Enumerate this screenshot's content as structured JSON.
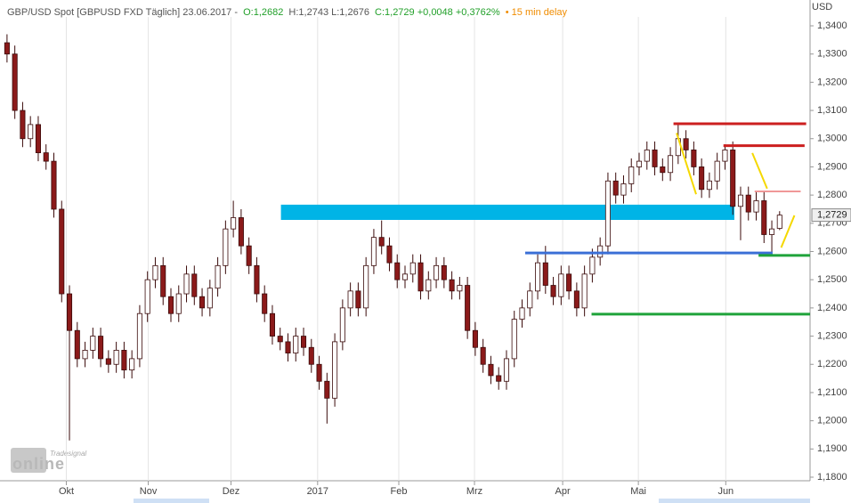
{
  "chart_data": {
    "type": "candlestick",
    "header": {
      "title": "GBP/USD Spot [GBPUSD FXD Täglich] 23.06.2017 -",
      "open": "O:1,2682",
      "high_low": "H:1,2743 L:1,2676",
      "close": "C:1,2729 +0,0048 +0,3762%",
      "delay": "• 15 min delay"
    },
    "y_unit": "USD",
    "watermark": {
      "brand": "Tradesignal",
      "logo": "online"
    },
    "up_color": "#ffffff",
    "down_color": "#8b1a1a",
    "outline_color": "#3a0a0a",
    "open": [
      1.334,
      1.33,
      1.31,
      1.3,
      1.305,
      1.295,
      1.292,
      1.275,
      1.245,
      1.232,
      1.222,
      1.225,
      1.23,
      1.222,
      1.22,
      1.225,
      1.218,
      1.222,
      1.238,
      1.25,
      1.255,
      1.244,
      1.238,
      1.245,
      1.252,
      1.244,
      1.24,
      1.247,
      1.255,
      1.268,
      1.272,
      1.262,
      1.255,
      1.245,
      1.238,
      1.23,
      1.228,
      1.224,
      1.23,
      1.226,
      1.22,
      1.214,
      1.208,
      1.228,
      1.24,
      1.246,
      1.24,
      1.255,
      1.265,
      1.262,
      1.256,
      1.25,
      1.252,
      1.256,
      1.246,
      1.25,
      1.255,
      1.25,
      1.246,
      1.248,
      1.232,
      1.226,
      1.22,
      1.216,
      1.214,
      1.222,
      1.236,
      1.24,
      1.246,
      1.256,
      1.248,
      1.244,
      1.252,
      1.246,
      1.24,
      1.252,
      1.258,
      1.262,
      1.285,
      1.28,
      1.284,
      1.29,
      1.292,
      1.296,
      1.29,
      1.288,
      1.294,
      1.3,
      1.296,
      1.29,
      1.282,
      1.285,
      1.292,
      1.296,
      1.276,
      1.28,
      1.274,
      1.278,
      1.266,
      1.2682
    ],
    "high": [
      1.337,
      1.333,
      1.313,
      1.308,
      1.308,
      1.298,
      1.295,
      1.278,
      1.248,
      1.235,
      1.228,
      1.233,
      1.233,
      1.225,
      1.228,
      1.228,
      1.225,
      1.241,
      1.253,
      1.258,
      1.258,
      1.247,
      1.248,
      1.255,
      1.255,
      1.247,
      1.25,
      1.258,
      1.271,
      1.278,
      1.275,
      1.265,
      1.258,
      1.248,
      1.241,
      1.233,
      1.231,
      1.233,
      1.233,
      1.229,
      1.223,
      1.217,
      1.231,
      1.243,
      1.249,
      1.249,
      1.258,
      1.268,
      1.271,
      1.265,
      1.259,
      1.255,
      1.259,
      1.259,
      1.253,
      1.258,
      1.258,
      1.253,
      1.251,
      1.251,
      1.235,
      1.229,
      1.223,
      1.219,
      1.225,
      1.239,
      1.243,
      1.249,
      1.259,
      1.262,
      1.251,
      1.255,
      1.255,
      1.249,
      1.255,
      1.261,
      1.265,
      1.288,
      1.288,
      1.287,
      1.293,
      1.295,
      1.299,
      1.299,
      1.293,
      1.297,
      1.305,
      1.303,
      1.299,
      1.293,
      1.288,
      1.295,
      1.298,
      1.299,
      1.283,
      1.283,
      1.281,
      1.281,
      1.271,
      1.2743
    ],
    "low": [
      1.327,
      1.307,
      1.297,
      1.297,
      1.292,
      1.289,
      1.272,
      1.242,
      1.193,
      1.219,
      1.219,
      1.222,
      1.219,
      1.217,
      1.217,
      1.215,
      1.215,
      1.219,
      1.235,
      1.247,
      1.241,
      1.235,
      1.235,
      1.242,
      1.241,
      1.237,
      1.237,
      1.244,
      1.252,
      1.265,
      1.259,
      1.252,
      1.242,
      1.235,
      1.227,
      1.225,
      1.221,
      1.221,
      1.223,
      1.217,
      1.211,
      1.199,
      1.205,
      1.225,
      1.237,
      1.237,
      1.237,
      1.252,
      1.259,
      1.253,
      1.247,
      1.247,
      1.249,
      1.243,
      1.243,
      1.247,
      1.247,
      1.243,
      1.243,
      1.229,
      1.223,
      1.217,
      1.213,
      1.211,
      1.211,
      1.219,
      1.233,
      1.237,
      1.243,
      1.245,
      1.241,
      1.241,
      1.243,
      1.237,
      1.237,
      1.249,
      1.255,
      1.259,
      1.277,
      1.277,
      1.281,
      1.287,
      1.289,
      1.287,
      1.285,
      1.285,
      1.291,
      1.293,
      1.287,
      1.279,
      1.279,
      1.282,
      1.289,
      1.273,
      1.264,
      1.271,
      1.271,
      1.263,
      1.259,
      1.2676
    ],
    "close": [
      1.33,
      1.31,
      1.3,
      1.305,
      1.295,
      1.292,
      1.275,
      1.245,
      1.232,
      1.222,
      1.225,
      1.23,
      1.222,
      1.22,
      1.225,
      1.218,
      1.222,
      1.238,
      1.25,
      1.255,
      1.244,
      1.238,
      1.245,
      1.252,
      1.244,
      1.24,
      1.247,
      1.255,
      1.268,
      1.272,
      1.262,
      1.255,
      1.245,
      1.238,
      1.23,
      1.228,
      1.224,
      1.23,
      1.226,
      1.22,
      1.214,
      1.208,
      1.228,
      1.24,
      1.246,
      1.24,
      1.255,
      1.265,
      1.262,
      1.256,
      1.25,
      1.252,
      1.256,
      1.246,
      1.25,
      1.255,
      1.25,
      1.246,
      1.248,
      1.232,
      1.226,
      1.22,
      1.216,
      1.214,
      1.222,
      1.236,
      1.24,
      1.246,
      1.256,
      1.248,
      1.244,
      1.252,
      1.246,
      1.24,
      1.252,
      1.258,
      1.262,
      1.285,
      1.28,
      1.284,
      1.29,
      1.292,
      1.296,
      1.29,
      1.288,
      1.294,
      1.3,
      1.296,
      1.29,
      1.282,
      1.285,
      1.292,
      1.296,
      1.276,
      1.28,
      1.274,
      1.278,
      1.266,
      1.268,
      1.2729
    ],
    "xlim": [
      -0.9,
      102.9
    ],
    "xticks": [
      {
        "value": 7.6,
        "label": "Okt"
      },
      {
        "value": 18.1,
        "label": "Nov"
      },
      {
        "value": 28.7,
        "label": "Dez"
      },
      {
        "value": 39.8,
        "label": "2017"
      },
      {
        "value": 50.2,
        "label": "Feb"
      },
      {
        "value": 59.9,
        "label": "Mrz"
      },
      {
        "value": 71.2,
        "label": "Apr"
      },
      {
        "value": 80.9,
        "label": "Mai"
      },
      {
        "value": 92.1,
        "label": "Jun"
      }
    ],
    "ylim": [
      1.18,
      1.34
    ],
    "yticks": [
      {
        "value": 1.34,
        "label": "1,3400"
      },
      {
        "value": 1.33,
        "label": "1,3300"
      },
      {
        "value": 1.32,
        "label": "1,3200"
      },
      {
        "value": 1.31,
        "label": "1,3100"
      },
      {
        "value": 1.3,
        "label": "1,3000"
      },
      {
        "value": 1.29,
        "label": "1,2900"
      },
      {
        "value": 1.28,
        "label": "1,2800"
      },
      {
        "value": 1.27,
        "label": "1,2700"
      },
      {
        "value": 1.26,
        "label": "1,2600"
      },
      {
        "value": 1.25,
        "label": "1,2500"
      },
      {
        "value": 1.24,
        "label": "1,2400"
      },
      {
        "value": 1.23,
        "label": "1,2300"
      },
      {
        "value": 1.22,
        "label": "1,2200"
      },
      {
        "value": 1.21,
        "label": "1,2100"
      },
      {
        "value": 1.2,
        "label": "1,2000"
      },
      {
        "value": 1.19,
        "label": "1,1900"
      },
      {
        "value": 1.18,
        "label": "1,1800"
      }
    ],
    "grid": true,
    "last_price": {
      "value": 1.2729,
      "label": "1,2729"
    },
    "band": {
      "range": [
        1.2712,
        1.2766
      ],
      "from": 35.1,
      "to": 93.2,
      "color": "#00b4e6"
    },
    "levels": [
      {
        "value": 1.3053,
        "from": 85.4,
        "to": 102.4,
        "color": "#cc1f1f",
        "width": 3
      },
      {
        "value": 1.2975,
        "from": 91.8,
        "to": 102.2,
        "color": "#cc1f1f",
        "width": 3
      },
      {
        "value": 1.2813,
        "from": 95.8,
        "to": 101.7,
        "color": "#e03030",
        "width": 1
      },
      {
        "value": 1.2595,
        "from": 66.4,
        "to": 98.1,
        "color": "#3b6fd6",
        "width": 3
      },
      {
        "value": 1.2586,
        "from": 96.3,
        "to": 102.9,
        "color": "#1fa33a",
        "width": 3
      },
      {
        "value": 1.2378,
        "from": 74.9,
        "to": 102.9,
        "color": "#1fa33a",
        "width": 3
      }
    ],
    "arrows": [
      {
        "x": [
          85.8,
          88.3
        ],
        "y": [
          1.302,
          1.2803
        ]
      },
      {
        "x": [
          95.5,
          97.4
        ],
        "y": [
          1.2949,
          1.2823
        ]
      },
      {
        "x": [
          99.2,
          100.9
        ],
        "y": [
          1.2614,
          1.2728
        ]
      }
    ],
    "arrow_color": "#f5d800"
  }
}
